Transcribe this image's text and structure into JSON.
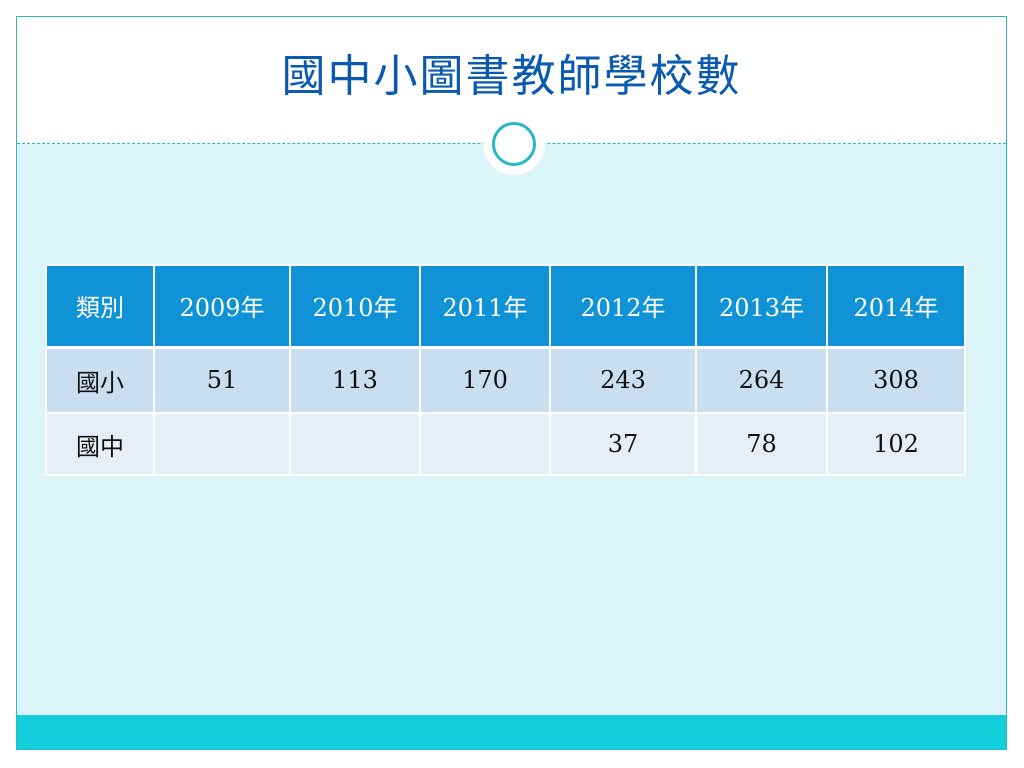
{
  "slide": {
    "title": "國中小圖書教師學校數"
  },
  "table": {
    "headers": [
      "類別",
      "2009年",
      "2010年",
      "2011年",
      "2012年",
      "2013年",
      "2014年"
    ],
    "rows": [
      [
        "國小",
        "51",
        "113",
        "170",
        "243",
        "264",
        "308"
      ],
      [
        "國中",
        "",
        "",
        "",
        "37",
        "78",
        "102"
      ]
    ]
  },
  "colors": {
    "title": "#0a5bb0",
    "accent": "#29b6c5",
    "header_fill": "#0f93d6",
    "footer_bar": "#13cfdc",
    "background": "#dbf4f8"
  }
}
